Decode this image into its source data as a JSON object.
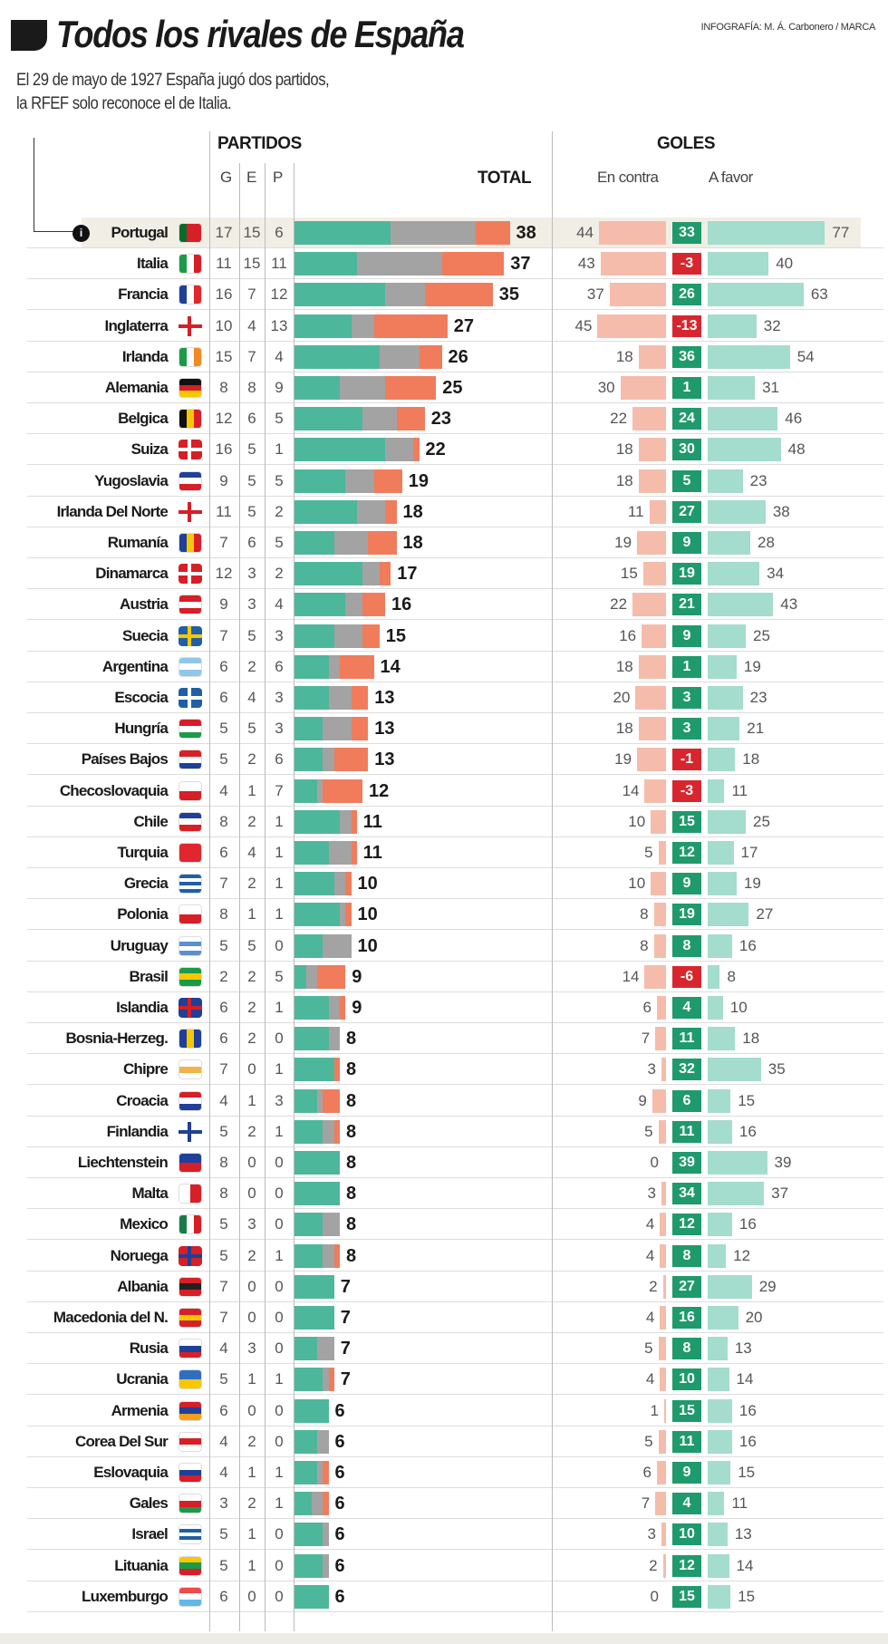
{
  "header": {
    "title": "Todos los rivales de España",
    "credit": "INFOGRAFÍA: M. Á. Carbonero / MARCA",
    "subtitle_line1": "El 29 de mayo de 1927 España jugó dos partidos,",
    "subtitle_line2": "la RFEF solo reconoce el de Italia.",
    "info_icon": "i"
  },
  "columns": {
    "partidos": "PARTIDOS",
    "g": "G",
    "e": "E",
    "p": "P",
    "total": "TOTAL",
    "goles": "GOLES",
    "contra": "En contra",
    "favor": "A favor"
  },
  "colors": {
    "won": "#4db79c",
    "drawn": "#a3a3a3",
    "lost": "#f07c5c",
    "against": "#f5bcac",
    "for": "#a4dccd",
    "gd_positive": "#1f9a6c",
    "gd_negative": "#d8262f",
    "highlight": "#f1eee6"
  },
  "chart_data": {
    "type": "table",
    "title": "Todos los rivales de España",
    "highlighted": "Portugal",
    "rows": [
      {
        "team": "Portugal",
        "flag": [
          "v",
          "#0a6a2c",
          "#d61f26",
          "#d61f26"
        ],
        "g": 17,
        "e": 15,
        "p": 6,
        "total": 38,
        "contra": 44,
        "gd": 33,
        "favor": 77
      },
      {
        "team": "Italia",
        "flag": [
          "v",
          "#1b9a48",
          "#fff",
          "#d61f26"
        ],
        "g": 11,
        "e": 15,
        "p": 11,
        "total": 37,
        "contra": 43,
        "gd": -3,
        "favor": 40
      },
      {
        "team": "Francia",
        "flag": [
          "v",
          "#1f3f99",
          "#fff",
          "#e1262d"
        ],
        "g": 16,
        "e": 7,
        "p": 12,
        "total": 35,
        "contra": 37,
        "gd": 26,
        "favor": 63
      },
      {
        "team": "Inglaterra",
        "flag": [
          "cross",
          "#fff",
          "#d61f26"
        ],
        "g": 10,
        "e": 4,
        "p": 13,
        "total": 27,
        "contra": 45,
        "gd": -13,
        "favor": 32
      },
      {
        "team": "Irlanda",
        "flag": [
          "v",
          "#1b9a48",
          "#fff",
          "#f08a24"
        ],
        "g": 15,
        "e": 7,
        "p": 4,
        "total": 26,
        "contra": 18,
        "gd": 36,
        "favor": 54
      },
      {
        "team": "Alemania",
        "flag": [
          "h",
          "#111",
          "#d61f26",
          "#f7c800"
        ],
        "g": 8,
        "e": 8,
        "p": 9,
        "total": 25,
        "contra": 30,
        "gd": 1,
        "favor": 31
      },
      {
        "team": "Belgica",
        "flag": [
          "v",
          "#111",
          "#f7c800",
          "#d61f26"
        ],
        "g": 12,
        "e": 6,
        "p": 5,
        "total": 23,
        "contra": 22,
        "gd": 24,
        "favor": 46
      },
      {
        "team": "Suiza",
        "flag": [
          "cross",
          "#d61f26",
          "#fff"
        ],
        "g": 16,
        "e": 5,
        "p": 1,
        "total": 22,
        "contra": 18,
        "gd": 30,
        "favor": 48
      },
      {
        "team": "Yugoslavia",
        "flag": [
          "h",
          "#1f3f99",
          "#fff",
          "#d61f26"
        ],
        "g": 9,
        "e": 5,
        "p": 5,
        "total": 19,
        "contra": 18,
        "gd": 5,
        "favor": 23
      },
      {
        "team": "Irlanda Del Norte",
        "flag": [
          "cross",
          "#fff",
          "#d61f26"
        ],
        "g": 11,
        "e": 5,
        "p": 2,
        "total": 18,
        "contra": 11,
        "gd": 27,
        "favor": 38
      },
      {
        "team": "Rumanía",
        "flag": [
          "v",
          "#1f3f99",
          "#f7c800",
          "#d61f26"
        ],
        "g": 7,
        "e": 6,
        "p": 5,
        "total": 18,
        "contra": 19,
        "gd": 9,
        "favor": 28
      },
      {
        "team": "Dinamarca",
        "flag": [
          "cross",
          "#d61f26",
          "#fff"
        ],
        "g": 12,
        "e": 3,
        "p": 2,
        "total": 17,
        "contra": 15,
        "gd": 19,
        "favor": 34
      },
      {
        "team": "Austria",
        "flag": [
          "h",
          "#d61f26",
          "#fff",
          "#d61f26"
        ],
        "g": 9,
        "e": 3,
        "p": 4,
        "total": 16,
        "contra": 22,
        "gd": 21,
        "favor": 43
      },
      {
        "team": "Suecia",
        "flag": [
          "cross",
          "#1f5fa8",
          "#f7c800"
        ],
        "g": 7,
        "e": 5,
        "p": 3,
        "total": 15,
        "contra": 16,
        "gd": 9,
        "favor": 25
      },
      {
        "team": "Argentina",
        "flag": [
          "h",
          "#8fc6ea",
          "#fff",
          "#8fc6ea"
        ],
        "g": 6,
        "e": 2,
        "p": 6,
        "total": 14,
        "contra": 18,
        "gd": 1,
        "favor": 19
      },
      {
        "team": "Escocia",
        "flag": [
          "cross",
          "#1f5fa8",
          "#fff"
        ],
        "g": 6,
        "e": 4,
        "p": 3,
        "total": 13,
        "contra": 20,
        "gd": 3,
        "favor": 23
      },
      {
        "team": "Hungría",
        "flag": [
          "h",
          "#d61f26",
          "#fff",
          "#1b9a48"
        ],
        "g": 5,
        "e": 5,
        "p": 3,
        "total": 13,
        "contra": 18,
        "gd": 3,
        "favor": 21
      },
      {
        "team": "Países Bajos",
        "flag": [
          "h",
          "#d61f26",
          "#fff",
          "#1f3f99"
        ],
        "g": 5,
        "e": 2,
        "p": 6,
        "total": 13,
        "contra": 19,
        "gd": -1,
        "favor": 18
      },
      {
        "team": "Checoslovaquia",
        "flag": [
          "h",
          "#fff",
          "#d61f26"
        ],
        "g": 4,
        "e": 1,
        "p": 7,
        "total": 12,
        "contra": 14,
        "gd": -3,
        "favor": 11
      },
      {
        "team": "Chile",
        "flag": [
          "h",
          "#1f3f99",
          "#fff",
          "#d61f26"
        ],
        "g": 8,
        "e": 2,
        "p": 1,
        "total": 11,
        "contra": 10,
        "gd": 15,
        "favor": 25
      },
      {
        "team": "Turquia",
        "flag": [
          "h",
          "#e1262d",
          "#e1262d"
        ],
        "g": 6,
        "e": 4,
        "p": 1,
        "total": 11,
        "contra": 5,
        "gd": 12,
        "favor": 17
      },
      {
        "team": "Grecia",
        "flag": [
          "h",
          "#1f5fa8",
          "#fff",
          "#1f5fa8",
          "#fff",
          "#1f5fa8"
        ],
        "g": 7,
        "e": 2,
        "p": 1,
        "total": 10,
        "contra": 10,
        "gd": 9,
        "favor": 19
      },
      {
        "team": "Polonia",
        "flag": [
          "h",
          "#fff",
          "#d61f26"
        ],
        "g": 8,
        "e": 1,
        "p": 1,
        "total": 10,
        "contra": 8,
        "gd": 19,
        "favor": 27
      },
      {
        "team": "Uruguay",
        "flag": [
          "h",
          "#fff",
          "#5b8fd0",
          "#fff",
          "#5b8fd0"
        ],
        "g": 5,
        "e": 5,
        "p": 0,
        "total": 10,
        "contra": 8,
        "gd": 8,
        "favor": 16
      },
      {
        "team": "Brasil",
        "flag": [
          "h",
          "#1b9a48",
          "#f7c800",
          "#1b9a48"
        ],
        "g": 2,
        "e": 2,
        "p": 5,
        "total": 9,
        "contra": 14,
        "gd": -6,
        "favor": 8
      },
      {
        "team": "Islandia",
        "flag": [
          "cross",
          "#1f3f99",
          "#d61f26"
        ],
        "g": 6,
        "e": 2,
        "p": 1,
        "total": 9,
        "contra": 6,
        "gd": 4,
        "favor": 10
      },
      {
        "team": "Bosnia-Herzeg.",
        "flag": [
          "v",
          "#1f3f99",
          "#f7c800",
          "#1f3f99"
        ],
        "g": 6,
        "e": 2,
        "p": 0,
        "total": 8,
        "contra": 7,
        "gd": 11,
        "favor": 18
      },
      {
        "team": "Chipre",
        "flag": [
          "h",
          "#fff",
          "#f2b24a",
          "#fff"
        ],
        "g": 7,
        "e": 0,
        "p": 1,
        "total": 8,
        "contra": 3,
        "gd": 32,
        "favor": 35
      },
      {
        "team": "Croacia",
        "flag": [
          "h",
          "#d61f26",
          "#fff",
          "#1f3f99"
        ],
        "g": 4,
        "e": 1,
        "p": 3,
        "total": 8,
        "contra": 9,
        "gd": 6,
        "favor": 15
      },
      {
        "team": "Finlandia",
        "flag": [
          "cross",
          "#fff",
          "#1f3f99"
        ],
        "g": 5,
        "e": 2,
        "p": 1,
        "total": 8,
        "contra": 5,
        "gd": 11,
        "favor": 16
      },
      {
        "team": "Liechtenstein",
        "flag": [
          "h",
          "#1f3f99",
          "#d61f26"
        ],
        "g": 8,
        "e": 0,
        "p": 0,
        "total": 8,
        "contra": 0,
        "gd": 39,
        "favor": 39
      },
      {
        "team": "Malta",
        "flag": [
          "v",
          "#fff",
          "#d61f26"
        ],
        "g": 8,
        "e": 0,
        "p": 0,
        "total": 8,
        "contra": 3,
        "gd": 34,
        "favor": 37
      },
      {
        "team": "Mexico",
        "flag": [
          "v",
          "#1b7a48",
          "#fff",
          "#d61f26"
        ],
        "g": 5,
        "e": 3,
        "p": 0,
        "total": 8,
        "contra": 4,
        "gd": 12,
        "favor": 16
      },
      {
        "team": "Noruega",
        "flag": [
          "cross",
          "#d61f26",
          "#1f3f99"
        ],
        "g": 5,
        "e": 2,
        "p": 1,
        "total": 8,
        "contra": 4,
        "gd": 8,
        "favor": 12
      },
      {
        "team": "Albania",
        "flag": [
          "h",
          "#d61f26",
          "#222",
          "#d61f26"
        ],
        "g": 7,
        "e": 0,
        "p": 0,
        "total": 7,
        "contra": 2,
        "gd": 27,
        "favor": 29
      },
      {
        "team": "Macedonia del N.",
        "flag": [
          "h",
          "#d61f26",
          "#f7c800",
          "#d61f26"
        ],
        "g": 7,
        "e": 0,
        "p": 0,
        "total": 7,
        "contra": 4,
        "gd": 16,
        "favor": 20
      },
      {
        "team": "Rusia",
        "flag": [
          "h",
          "#fff",
          "#1f3f99",
          "#d61f26"
        ],
        "g": 4,
        "e": 3,
        "p": 0,
        "total": 7,
        "contra": 5,
        "gd": 8,
        "favor": 13
      },
      {
        "team": "Ucrania",
        "flag": [
          "h",
          "#2f6fc0",
          "#f7c800"
        ],
        "g": 5,
        "e": 1,
        "p": 1,
        "total": 7,
        "contra": 4,
        "gd": 10,
        "favor": 14
      },
      {
        "team": "Armenia",
        "flag": [
          "h",
          "#d61f26",
          "#1f3f99",
          "#f2a01a"
        ],
        "g": 6,
        "e": 0,
        "p": 0,
        "total": 6,
        "contra": 1,
        "gd": 15,
        "favor": 16
      },
      {
        "team": "Corea Del Sur",
        "flag": [
          "h",
          "#fff",
          "#d61f26",
          "#fff"
        ],
        "g": 4,
        "e": 2,
        "p": 0,
        "total": 6,
        "contra": 5,
        "gd": 11,
        "favor": 16
      },
      {
        "team": "Eslovaquia",
        "flag": [
          "h",
          "#fff",
          "#1f3f99",
          "#d61f26"
        ],
        "g": 4,
        "e": 1,
        "p": 1,
        "total": 6,
        "contra": 6,
        "gd": 9,
        "favor": 15
      },
      {
        "team": "Gales",
        "flag": [
          "h",
          "#fff",
          "#d61f26",
          "#1b9a48"
        ],
        "g": 3,
        "e": 2,
        "p": 1,
        "total": 6,
        "contra": 7,
        "gd": 4,
        "favor": 11
      },
      {
        "team": "Israel",
        "flag": [
          "h",
          "#fff",
          "#1f5fa8",
          "#fff",
          "#1f5fa8",
          "#fff"
        ],
        "g": 5,
        "e": 1,
        "p": 0,
        "total": 6,
        "contra": 3,
        "gd": 10,
        "favor": 13
      },
      {
        "team": "Lituania",
        "flag": [
          "h",
          "#f7c800",
          "#1b9a48",
          "#d61f26"
        ],
        "g": 5,
        "e": 1,
        "p": 0,
        "total": 6,
        "contra": 2,
        "gd": 12,
        "favor": 14
      },
      {
        "team": "Luxemburgo",
        "flag": [
          "h",
          "#ef4b4b",
          "#fff",
          "#5fb8ea"
        ],
        "g": 6,
        "e": 0,
        "p": 0,
        "total": 6,
        "contra": 0,
        "gd": 15,
        "favor": 15
      }
    ]
  }
}
